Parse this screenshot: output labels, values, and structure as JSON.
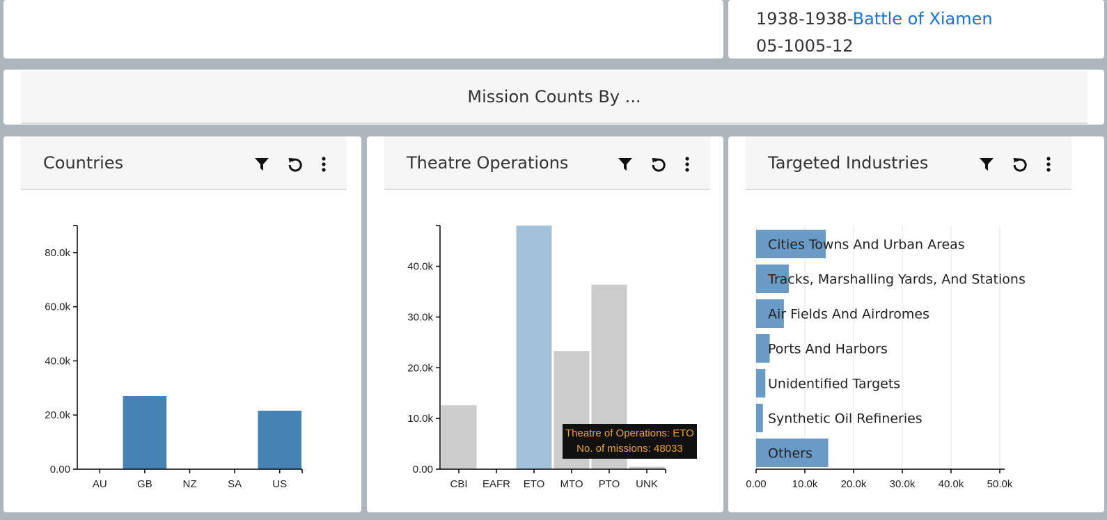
{
  "info": {
    "battle_years": "1938-1938-",
    "battle_link": "Battle of Xiamen",
    "code": "05-1005-12"
  },
  "section": {
    "title": "Mission Counts By ..."
  },
  "colors": {
    "bar": "#4682b4",
    "bar_selected": "#a4c1dc",
    "bar_muted": "#cccccc",
    "hbar": "#6a9ac6",
    "grid": "#e4e4e4",
    "link": "#1a73d4"
  },
  "icons": {
    "filter": "filter-icon",
    "reset": "reset-icon",
    "more": "more-vertical-icon"
  },
  "panels": [
    {
      "title": "Countries"
    },
    {
      "title": "Theatre Operations"
    },
    {
      "title": "Targeted Industries"
    }
  ],
  "chart_data": [
    {
      "type": "bar",
      "title": "Countries",
      "categories": [
        "AU",
        "GB",
        "NZ",
        "SA",
        "US"
      ],
      "values": [
        0,
        27000,
        0,
        0,
        21600
      ],
      "ylim": [
        0,
        90000
      ],
      "yticks": [
        0,
        20000,
        40000,
        60000,
        80000
      ],
      "ytick_labels": [
        "0.00",
        "20.0k",
        "40.0k",
        "60.0k",
        "80.0k"
      ],
      "grid": false
    },
    {
      "type": "bar",
      "title": "Theatre Operations",
      "categories": [
        "CBI",
        "EAFR",
        "ETO",
        "MTO",
        "PTO",
        "UNK"
      ],
      "values": [
        12600,
        0,
        48033,
        23300,
        36400,
        500
      ],
      "selected": "ETO",
      "ylim": [
        0,
        48033
      ],
      "yticks": [
        0,
        10000,
        20000,
        30000,
        40000
      ],
      "ytick_labels": [
        "0.00",
        "10.0k",
        "20.0k",
        "30.0k",
        "40.0k"
      ],
      "grid": false,
      "tooltip": {
        "line1": "Theatre of Operations: ETO",
        "line2": "No. of missions: 48033"
      }
    },
    {
      "type": "bar",
      "orientation": "horizontal",
      "title": "Targeted Industries",
      "categories": [
        "Cities Towns And Urban Areas",
        "Tracks, Marshalling Yards, And Stations",
        "Air Fields And Airdromes",
        "Ports And Harbors",
        "Unidentified Targets",
        "Synthetic Oil Refineries",
        "Others"
      ],
      "values": [
        14300,
        6700,
        5700,
        2800,
        1900,
        1400,
        14800
      ],
      "xlim": [
        0,
        51000
      ],
      "xticks": [
        0,
        10000,
        20000,
        30000,
        40000,
        50000
      ],
      "xtick_labels": [
        "0.00",
        "10.0k",
        "20.0k",
        "30.0k",
        "40.0k",
        "50.0k"
      ],
      "grid": true
    }
  ]
}
